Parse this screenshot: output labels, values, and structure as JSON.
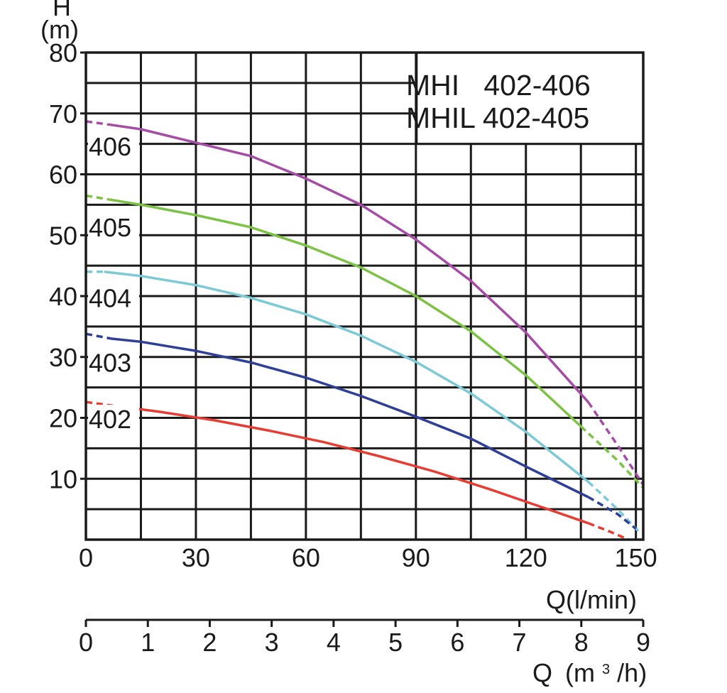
{
  "chart_data": {
    "type": "line",
    "title_lines": [
      "MHI   402-406",
      "MHIL 402-405"
    ],
    "ylabel": "H",
    "yunit": "(m)",
    "xlabel": "Q(l/min)",
    "x2label_prefix": "Q",
    "x2label_unit": "(m",
    "x2label_sup": "3",
    "x2label_suffix": "/h)",
    "xlim": [
      0,
      152
    ],
    "ylim": [
      0,
      80
    ],
    "x_ticks": [
      "0",
      "30",
      "60",
      "90",
      "120",
      "150"
    ],
    "x_tick_values": [
      0,
      30,
      60,
      90,
      120,
      150
    ],
    "x2_ticks": [
      "0",
      "1",
      "2",
      "3",
      "4",
      "5",
      "6",
      "7",
      "8",
      "9"
    ],
    "x2_tick_values": [
      0,
      1,
      2,
      3,
      4,
      5,
      6,
      7,
      8,
      9
    ],
    "y_ticks": [
      "10",
      "20",
      "30",
      "40",
      "50",
      "60",
      "70",
      "80"
    ],
    "y_tick_values": [
      10,
      20,
      30,
      40,
      50,
      60,
      70,
      80
    ],
    "grid": true,
    "legend_position": "top-right",
    "series": [
      {
        "name": "406",
        "color": "#a64ca6",
        "label_y": 64.5,
        "dashed_start": [
          [
            0,
            68.7
          ],
          [
            6,
            68.2
          ]
        ],
        "solid": [
          [
            6,
            68.2
          ],
          [
            15,
            67.4
          ],
          [
            30,
            65.2
          ],
          [
            45,
            63.0
          ],
          [
            60,
            59.3
          ],
          [
            75,
            55.0
          ],
          [
            90,
            49.3
          ],
          [
            105,
            42.5
          ],
          [
            120,
            34.0
          ],
          [
            137,
            22.6
          ]
        ],
        "dashed_end": [
          [
            137,
            22.6
          ],
          [
            145,
            15.5
          ],
          [
            152,
            9.0
          ]
        ]
      },
      {
        "name": "405",
        "color": "#7cc244",
        "label_y": 51.2,
        "dashed_start": [
          [
            0,
            56.5
          ],
          [
            6,
            55.9
          ]
        ],
        "solid": [
          [
            6,
            55.9
          ],
          [
            15,
            55.0
          ],
          [
            30,
            53.3
          ],
          [
            45,
            51.3
          ],
          [
            60,
            48.3
          ],
          [
            75,
            44.7
          ],
          [
            90,
            40.0
          ],
          [
            105,
            34.2
          ],
          [
            120,
            27.0
          ],
          [
            135,
            18.6
          ]
        ],
        "dashed_end": [
          [
            135,
            18.6
          ],
          [
            145,
            13.0
          ],
          [
            152,
            8.5
          ]
        ]
      },
      {
        "name": "404",
        "color": "#7cc9d8",
        "label_y": 39.6,
        "dashed_start": [
          [
            0,
            44.0
          ],
          [
            5,
            44.0
          ]
        ],
        "solid": [
          [
            5,
            44.0
          ],
          [
            15,
            43.3
          ],
          [
            30,
            41.8
          ],
          [
            45,
            39.7
          ],
          [
            60,
            37.0
          ],
          [
            75,
            33.5
          ],
          [
            90,
            29.2
          ],
          [
            105,
            24.0
          ],
          [
            120,
            17.7
          ],
          [
            137,
            9.5
          ]
        ],
        "dashed_end": [
          [
            137,
            9.5
          ],
          [
            145,
            5.0
          ],
          [
            151,
            1.2
          ]
        ]
      },
      {
        "name": "403",
        "color": "#2e3f97",
        "label_y": 29.0,
        "dashed_start": [
          [
            0,
            33.8
          ],
          [
            7,
            33.0
          ]
        ],
        "solid": [
          [
            7,
            33.0
          ],
          [
            15,
            32.5
          ],
          [
            30,
            31.0
          ],
          [
            45,
            29.1
          ],
          [
            60,
            26.6
          ],
          [
            75,
            23.6
          ],
          [
            90,
            20.2
          ],
          [
            105,
            16.6
          ],
          [
            120,
            12.0
          ],
          [
            137,
            7.0
          ]
        ],
        "dashed_end": [
          [
            137,
            7.0
          ],
          [
            145,
            4.2
          ],
          [
            150,
            1.8
          ]
        ]
      },
      {
        "name": "402",
        "color": "#e63c32",
        "label_y": 19.7,
        "dashed_start": [
          [
            0,
            22.6
          ],
          [
            10,
            21.8
          ]
        ],
        "solid": [
          [
            10,
            21.8
          ],
          [
            20,
            21.0
          ],
          [
            35,
            19.6
          ],
          [
            50,
            17.9
          ],
          [
            65,
            16.0
          ],
          [
            80,
            13.7
          ],
          [
            95,
            11.2
          ],
          [
            110,
            8.3
          ],
          [
            125,
            5.2
          ],
          [
            137,
            2.7
          ]
        ],
        "dashed_end": [
          [
            137,
            2.7
          ],
          [
            143,
            1.3
          ],
          [
            148,
            0.0
          ]
        ]
      }
    ]
  }
}
